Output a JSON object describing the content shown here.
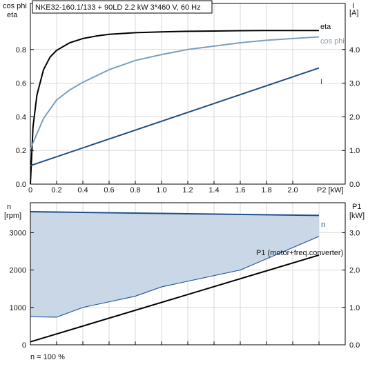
{
  "colors": {
    "eta": "#000000",
    "cos_phi": "#7a9fbd",
    "current": "#1f4e86",
    "speed": "#1f4e86",
    "speed_fill": "#c9d7e6",
    "p1_upper": "#2e5d9e",
    "p1_lower": "#000000",
    "grid": "#d9d9d9"
  },
  "chart_data": [
    {
      "type": "line",
      "title": "NKE32-160.1/133 + 90LD   2.2 kW   3*460 V, 60 Hz",
      "xlabel": "P2 [kW]",
      "ylabel_left": [
        "cos phi",
        "eta"
      ],
      "ylabel_right": [
        "I",
        "[A]"
      ],
      "xlim": [
        0,
        2.2
      ],
      "ylim_left": [
        0,
        1
      ],
      "ylim_right": [
        0,
        5
      ],
      "grid": true,
      "x_ticks": [
        "0",
        "0.2",
        "0.4",
        "0.6",
        "0.8",
        "1.0",
        "1.2",
        "1.4",
        "1.6",
        "1.8",
        "2.0"
      ],
      "y_left_ticks": [
        "0.0",
        "0.2",
        "0.4",
        "0.6",
        "0.8"
      ],
      "y_right_ticks": [
        "0.0",
        "1.0",
        "2.0",
        "3.0",
        "4.0"
      ],
      "series": [
        {
          "name": "eta",
          "axis": "left",
          "x": [
            0,
            0.02,
            0.05,
            0.1,
            0.15,
            0.2,
            0.3,
            0.4,
            0.5,
            0.6,
            0.8,
            1.0,
            1.2,
            1.4,
            1.6,
            1.8,
            2.0,
            2.2
          ],
          "y": [
            0.0,
            0.34,
            0.53,
            0.68,
            0.755,
            0.795,
            0.84,
            0.865,
            0.88,
            0.89,
            0.9,
            0.905,
            0.908,
            0.91,
            0.912,
            0.913,
            0.913,
            0.913
          ]
        },
        {
          "name": "cos phi",
          "axis": "left",
          "x": [
            0,
            0.05,
            0.1,
            0.2,
            0.3,
            0.4,
            0.6,
            0.8,
            1.0,
            1.2,
            1.4,
            1.6,
            1.8,
            2.0,
            2.2
          ],
          "y": [
            0.21,
            0.3,
            0.39,
            0.5,
            0.56,
            0.605,
            0.68,
            0.735,
            0.77,
            0.8,
            0.82,
            0.84,
            0.855,
            0.865,
            0.875
          ]
        },
        {
          "name": "I",
          "axis": "right",
          "x": [
            0,
            2.2
          ],
          "y": [
            0.55,
            3.45
          ]
        }
      ]
    },
    {
      "type": "area",
      "xlabel": "",
      "ylabel_left": [
        "n",
        "[rpm]"
      ],
      "ylabel_right": [
        "P1",
        "[kW]"
      ],
      "xlim": [
        0,
        2.2
      ],
      "ylim_left": [
        0,
        3800
      ],
      "ylim_right": [
        0,
        3.8
      ],
      "grid": true,
      "y_left_ticks": [
        "0",
        "1000",
        "2000",
        "3000"
      ],
      "y_right_ticks": [
        "0.0",
        "1.0",
        "2.0",
        "3.0"
      ],
      "footnote": "n = 100 %",
      "series": [
        {
          "name": "n",
          "axis": "left",
          "x": [
            0,
            2.2
          ],
          "y": [
            3560,
            3460
          ]
        },
        {
          "name": "P1 (motor+freq.converter)",
          "axis": "right",
          "x": [
            0,
            0.2,
            0.4,
            0.6,
            0.8,
            1.0,
            1.2,
            1.4,
            1.6,
            1.8,
            2.0,
            2.2
          ],
          "y": [
            0.75,
            0.74,
            1.0,
            1.15,
            1.3,
            1.55,
            1.7,
            1.85,
            2.0,
            2.3,
            2.6,
            2.9
          ]
        },
        {
          "name": "",
          "axis": "right",
          "x": [
            0,
            2.2
          ],
          "y": [
            0.08,
            2.4
          ]
        }
      ]
    }
  ]
}
